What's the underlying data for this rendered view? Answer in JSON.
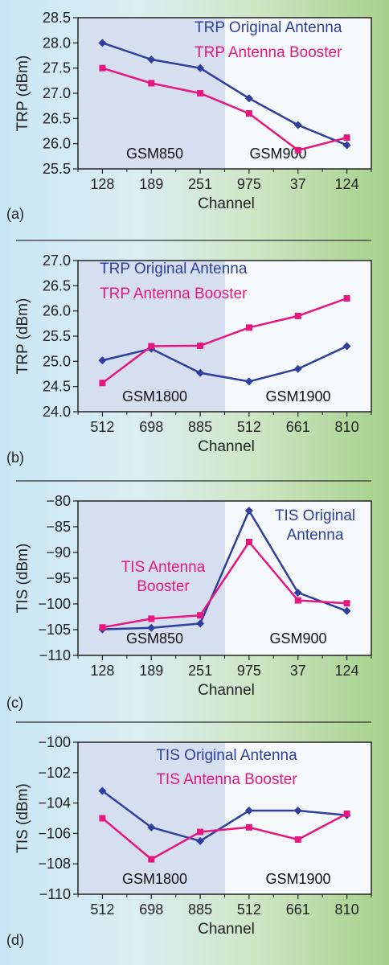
{
  "colors": {
    "original": "#2e3f9e",
    "booster": "#e6177e",
    "band1_bg": "#d5dff0",
    "band2_bg": "#f6f9fc"
  },
  "chart_data": [
    {
      "type": "line",
      "panel_label": "(a)",
      "xlabel": "Channel",
      "ylabel": "TRP (dBm)",
      "categories": [
        "128",
        "189",
        "251",
        "975",
        "37",
        "124"
      ],
      "ylim": [
        25.5,
        28.5
      ],
      "yticks": [
        "28.5",
        "28.0",
        "27.5",
        "27.0",
        "26.5",
        "26.0",
        "25.5"
      ],
      "bands": [
        "GSM850",
        "GSM900"
      ],
      "series": [
        {
          "name": "TRP Original Antenna",
          "values": [
            28.0,
            27.67,
            27.5,
            26.9,
            26.37,
            25.97
          ]
        },
        {
          "name": "TRP Antenna Booster",
          "values": [
            27.5,
            27.2,
            27.0,
            26.6,
            25.87,
            26.12
          ]
        }
      ]
    },
    {
      "type": "line",
      "panel_label": "(b)",
      "xlabel": "Channel",
      "ylabel": "TRP (dBm)",
      "categories": [
        "512",
        "698",
        "885",
        "512",
        "661",
        "810"
      ],
      "ylim": [
        24.0,
        27.0
      ],
      "yticks": [
        "27.0",
        "26.5",
        "26.0",
        "25.5",
        "25.0",
        "24.5",
        "24.0"
      ],
      "bands": [
        "GSM1800",
        "GSM1900"
      ],
      "series": [
        {
          "name": "TRP Original Antenna",
          "values": [
            25.02,
            25.25,
            24.77,
            24.6,
            24.85,
            25.3
          ]
        },
        {
          "name": "TRP Antenna Booster",
          "values": [
            24.57,
            25.3,
            25.31,
            25.67,
            25.9,
            26.25
          ]
        }
      ]
    },
    {
      "type": "line",
      "panel_label": "(c)",
      "xlabel": "Channel",
      "ylabel": "TIS (dBm)",
      "categories": [
        "128",
        "189",
        "251",
        "975",
        "37",
        "124"
      ],
      "ylim": [
        -110,
        -78
      ],
      "yticks": [
        "−80",
        "−85",
        "−90",
        "−95",
        "−100",
        "−105",
        "−110"
      ],
      "bands": [
        "GSM850",
        "GSM900"
      ],
      "series": [
        {
          "name": "TIS Original Antenna",
          "values": [
            -104.6,
            -104.3,
            -103.4,
            -80.0,
            -97.0,
            -100.8
          ]
        },
        {
          "name": "TIS Antenna Booster",
          "values": [
            -104.2,
            -102.4,
            -101.7,
            -86.5,
            -98.6,
            -99.2
          ]
        }
      ]
    },
    {
      "type": "line",
      "panel_label": "(d)",
      "xlabel": "Channel",
      "ylabel": "TIS (dBm)",
      "categories": [
        "512",
        "698",
        "885",
        "512",
        "661",
        "810"
      ],
      "ylim": [
        -110,
        -100
      ],
      "yticks": [
        "−100",
        "−102",
        "−104",
        "−106",
        "−108",
        "−110"
      ],
      "bands": [
        "GSM1800",
        "GSM1900"
      ],
      "series": [
        {
          "name": "TIS Original Antenna",
          "values": [
            -103.2,
            -105.6,
            -106.5,
            -104.5,
            -104.5,
            -104.8
          ]
        },
        {
          "name": "TIS Antenna Booster",
          "values": [
            -105.0,
            -107.7,
            -105.9,
            -105.6,
            -106.4,
            -104.7
          ]
        }
      ]
    }
  ]
}
